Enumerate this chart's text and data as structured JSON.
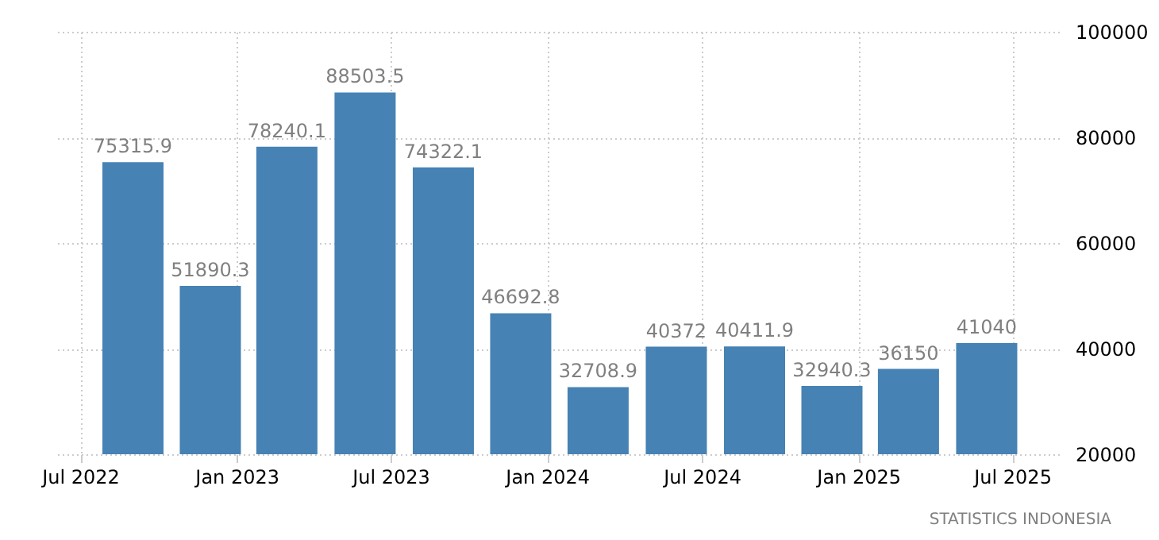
{
  "chart_data": {
    "type": "bar",
    "x": [
      "2022-09",
      "2022-12",
      "2023-03",
      "2023-06",
      "2023-09",
      "2023-12",
      "2024-03",
      "2024-06",
      "2024-09",
      "2024-12",
      "2025-03",
      "2025-06"
    ],
    "values": [
      75315.9,
      51890.3,
      78240.1,
      88503.5,
      74322.1,
      46692.8,
      32708.9,
      40372,
      40411.9,
      32940.3,
      36150,
      41040
    ],
    "color": "#4682b4",
    "data_labels": true,
    "xlim": [
      "2022-06-02",
      "2025-08-25"
    ],
    "xticks": [
      {
        "value": "2022-07",
        "label": "Jul 2022"
      },
      {
        "value": "2023-01",
        "label": "Jan 2023"
      },
      {
        "value": "2023-07",
        "label": "Jul 2023"
      },
      {
        "value": "2024-01",
        "label": "Jan 2024"
      },
      {
        "value": "2024-07",
        "label": "Jul 2024"
      },
      {
        "value": "2025-01",
        "label": "Jan 2025"
      },
      {
        "value": "2025-07",
        "label": "Jul 2025"
      }
    ],
    "ylim": [
      20000,
      100000
    ],
    "yticks": [
      20000,
      40000,
      60000,
      80000,
      100000
    ],
    "grid": true,
    "annotations": [
      "STATISTICS INDONESIA"
    ]
  }
}
